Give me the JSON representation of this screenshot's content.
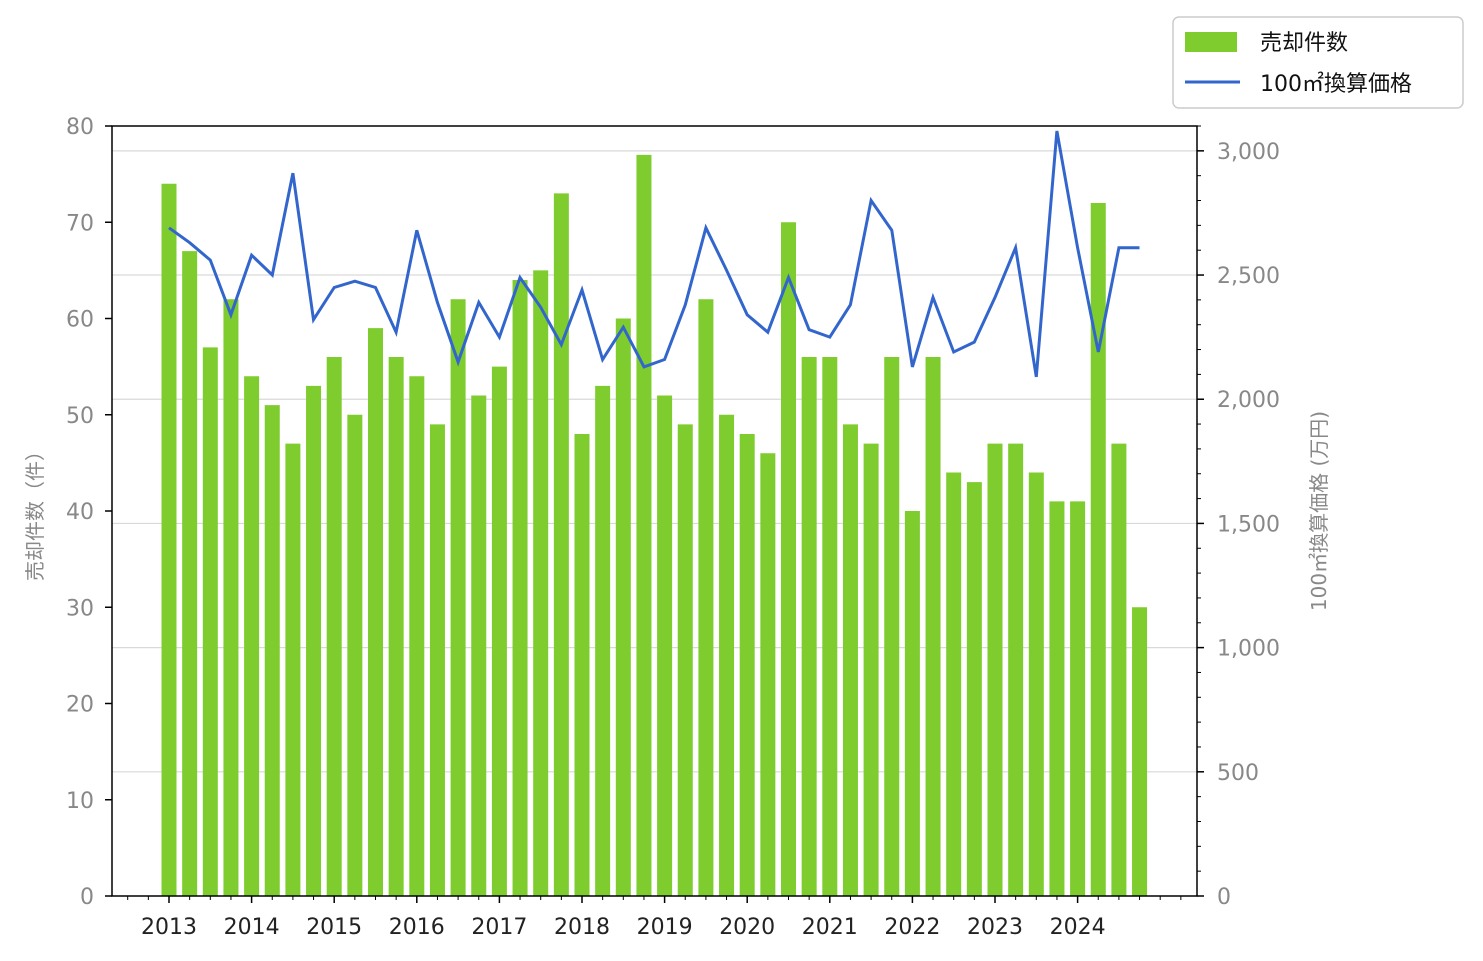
{
  "chart_data": {
    "type": "bar",
    "x_tick_labels": [
      "2013",
      "2014",
      "2015",
      "2016",
      "2017",
      "2018",
      "2019",
      "2020",
      "2021",
      "2022",
      "2023",
      "2024"
    ],
    "y_left_label": "売却件数（件）",
    "y_right_label": "100㎡換算価格 (万円)",
    "y_left_lim": [
      0,
      80
    ],
    "y_left_ticks": [
      0,
      10,
      20,
      30,
      40,
      50,
      60,
      70,
      80
    ],
    "y_right_lim": [
      0,
      3100
    ],
    "y_right_ticks": [
      0,
      500,
      1000,
      1500,
      2000,
      2500,
      3000
    ],
    "y_right_tick_labels": [
      "0",
      "500",
      "1,000",
      "1,500",
      "2,000",
      "2,500",
      "3,000"
    ],
    "grid": "horizontal, right axis",
    "legend_position": "top-right",
    "series": [
      {
        "name": "売却件数",
        "type": "bar",
        "axis": "left",
        "color": "#7fcc2e",
        "values": [
          74,
          67,
          57,
          62,
          54,
          51,
          47,
          53,
          56,
          50,
          59,
          56,
          54,
          49,
          62,
          52,
          55,
          64,
          65,
          73,
          48,
          53,
          60,
          77,
          52,
          49,
          62,
          50,
          48,
          46,
          70,
          56,
          56,
          49,
          47,
          56,
          40,
          56,
          44,
          43,
          47,
          47,
          44,
          41,
          41,
          72,
          47,
          30
        ]
      },
      {
        "name": "100㎡換算価格",
        "type": "line",
        "axis": "right",
        "color": "#3366cc",
        "values": [
          2690,
          2630,
          2560,
          2340,
          2580,
          2500,
          2910,
          2320,
          2450,
          2475,
          2450,
          2270,
          2680,
          2390,
          2150,
          2390,
          2250,
          2490,
          2370,
          2220,
          2440,
          2160,
          2290,
          2130,
          2160,
          2380,
          2690,
          2520,
          2340,
          2270,
          2490,
          2280,
          2250,
          2380,
          2800,
          2680,
          2130,
          2410,
          2190,
          2230,
          2410,
          2610,
          2090,
          3080,
          2610,
          2190,
          2610,
          2610
        ]
      }
    ]
  }
}
